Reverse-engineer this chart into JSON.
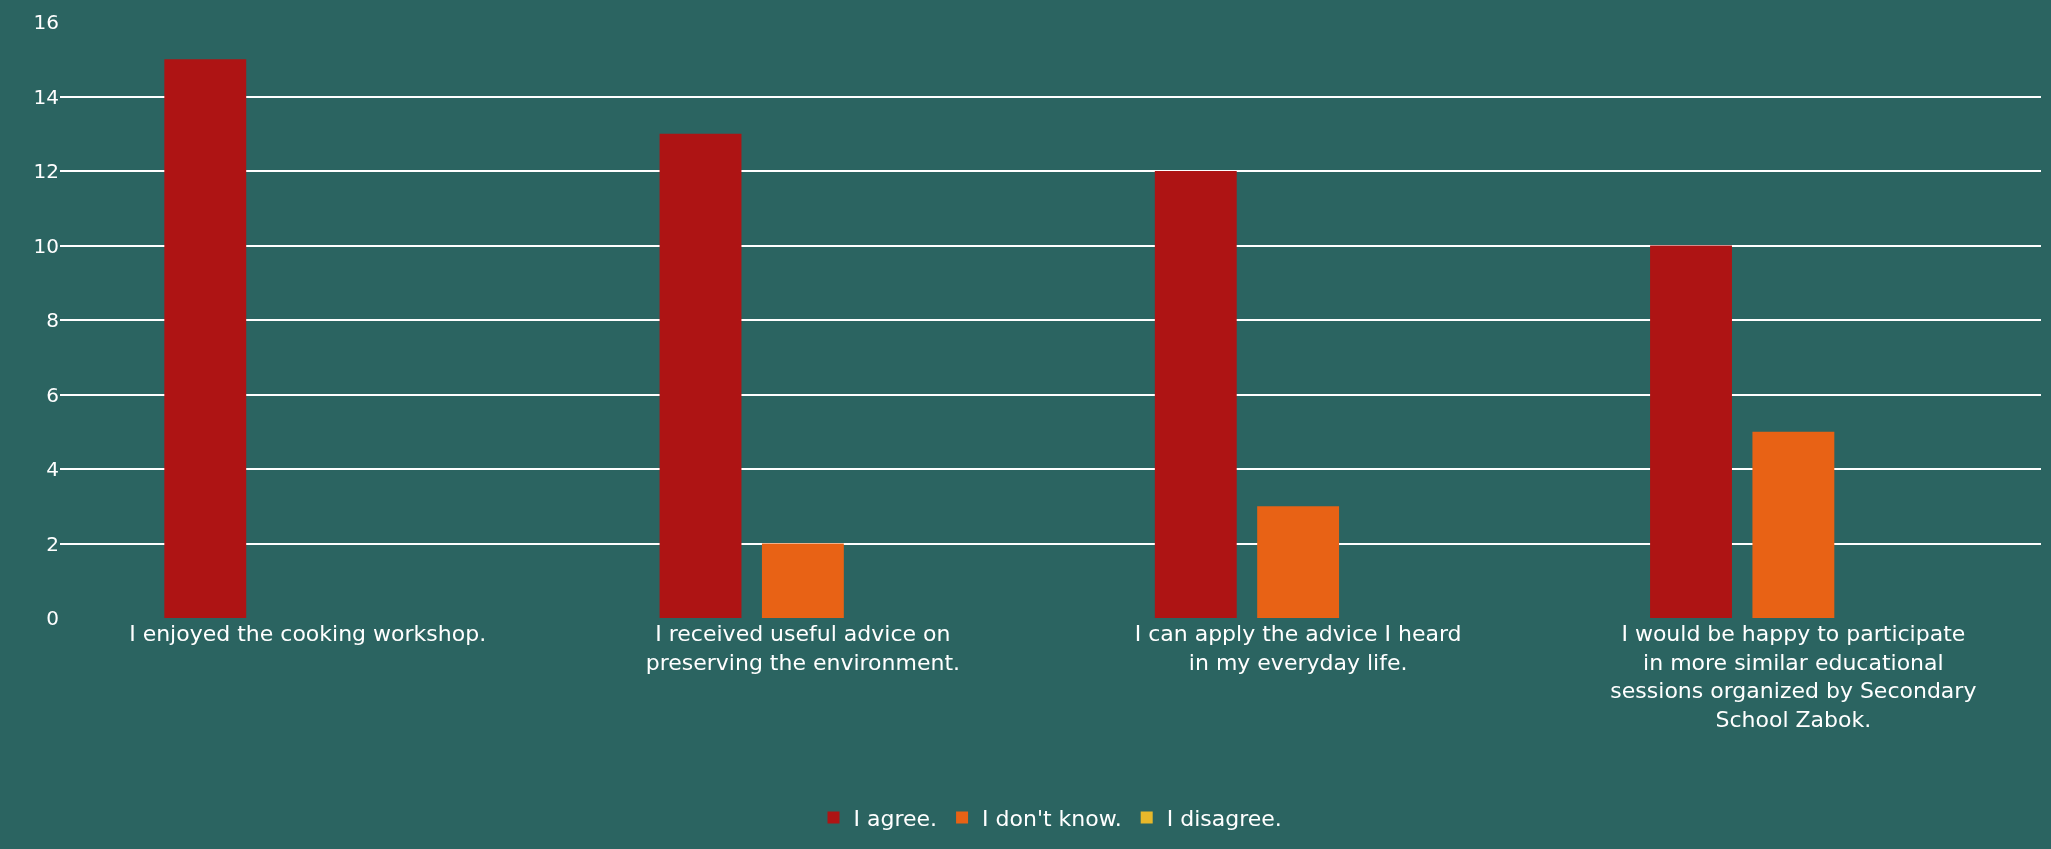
{
  "chart_data": {
    "type": "bar",
    "categories": [
      "I enjoyed the cooking workshop.",
      "I received useful advice on preserving the environment.",
      "I can apply the advice I heard in my everyday life.",
      "I would be happy to participate in more similar educational sessions organized by Secondary School Zabok."
    ],
    "series": [
      {
        "name": "I agree.",
        "color": "#ae1414",
        "values": [
          15,
          13,
          12,
          10
        ]
      },
      {
        "name": "I don't know.",
        "color": "#e86215",
        "values": [
          0,
          2,
          3,
          5
        ]
      },
      {
        "name": "I disagree.",
        "color": "#e8b82a",
        "values": [
          0,
          0,
          0,
          0
        ]
      }
    ],
    "ylim": [
      0,
      16
    ],
    "yticks": [
      0,
      2,
      4,
      6,
      8,
      10,
      12,
      14,
      16
    ],
    "grid": "y",
    "legend": "bottom"
  }
}
